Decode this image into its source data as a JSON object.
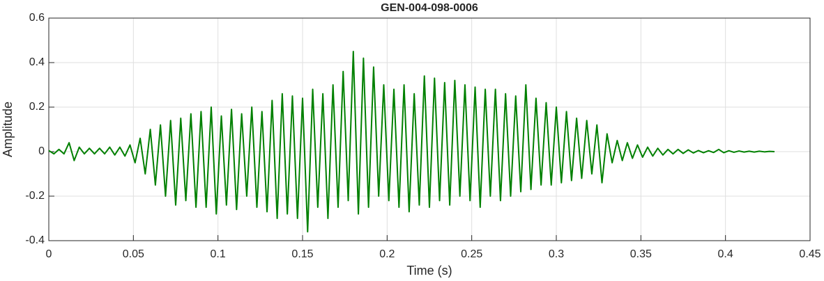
{
  "chart_data": {
    "type": "line",
    "title": "GEN-004-098-0006",
    "x_label": "Time (s)",
    "y_label": "Amplitude",
    "x": [
      0,
      0.003,
      0.006,
      0.009,
      0.012,
      0.015,
      0.018,
      0.021,
      0.024,
      0.027,
      0.03,
      0.033,
      0.036,
      0.039,
      0.042,
      0.045,
      0.048,
      0.051,
      0.054,
      0.057,
      0.06,
      0.063,
      0.066,
      0.069,
      0.072,
      0.075,
      0.078,
      0.081,
      0.084,
      0.087,
      0.09,
      0.093,
      0.096,
      0.099,
      0.102,
      0.105,
      0.108,
      0.111,
      0.114,
      0.117,
      0.12,
      0.123,
      0.126,
      0.129,
      0.132,
      0.135,
      0.138,
      0.141,
      0.144,
      0.147,
      0.15,
      0.153,
      0.156,
      0.159,
      0.162,
      0.165,
      0.168,
      0.171,
      0.174,
      0.177,
      0.18,
      0.183,
      0.186,
      0.189,
      0.192,
      0.195,
      0.198,
      0.201,
      0.204,
      0.207,
      0.21,
      0.213,
      0.216,
      0.219,
      0.222,
      0.225,
      0.228,
      0.231,
      0.234,
      0.237,
      0.24,
      0.243,
      0.246,
      0.249,
      0.252,
      0.255,
      0.258,
      0.261,
      0.264,
      0.267,
      0.27,
      0.273,
      0.276,
      0.279,
      0.282,
      0.285,
      0.288,
      0.291,
      0.294,
      0.297,
      0.3,
      0.303,
      0.306,
      0.309,
      0.312,
      0.315,
      0.318,
      0.321,
      0.324,
      0.327,
      0.33,
      0.333,
      0.336,
      0.339,
      0.342,
      0.345,
      0.348,
      0.351,
      0.354,
      0.357,
      0.36,
      0.363,
      0.366,
      0.369,
      0.372,
      0.375,
      0.378,
      0.381,
      0.384,
      0.387,
      0.39,
      0.393,
      0.396,
      0.399,
      0.402,
      0.405,
      0.408,
      0.411,
      0.414,
      0.417,
      0.42,
      0.423,
      0.426,
      0.429
    ],
    "series": [
      {
        "name": "Amplitude",
        "color": "#008000",
        "values": [
          0.005,
          -0.01,
          0.01,
          -0.01,
          0.04,
          -0.04,
          0.02,
          -0.01,
          0.015,
          -0.01,
          0.015,
          -0.01,
          0.02,
          -0.015,
          0.02,
          -0.02,
          0.03,
          -0.05,
          0.06,
          -0.1,
          0.1,
          -0.15,
          0.12,
          -0.2,
          0.14,
          -0.24,
          0.15,
          -0.22,
          0.17,
          -0.25,
          0.18,
          -0.25,
          0.2,
          -0.28,
          0.16,
          -0.24,
          0.19,
          -0.26,
          0.17,
          -0.2,
          0.2,
          -0.25,
          0.18,
          -0.27,
          0.23,
          -0.3,
          0.26,
          -0.28,
          0.25,
          -0.3,
          0.24,
          -0.36,
          0.28,
          -0.25,
          0.26,
          -0.3,
          0.3,
          -0.25,
          0.36,
          -0.22,
          0.45,
          -0.28,
          0.42,
          -0.25,
          0.38,
          -0.2,
          0.3,
          -0.22,
          0.28,
          -0.25,
          0.3,
          -0.27,
          0.26,
          -0.24,
          0.34,
          -0.25,
          0.33,
          -0.22,
          0.31,
          -0.24,
          0.32,
          -0.2,
          0.3,
          -0.22,
          0.29,
          -0.25,
          0.28,
          -0.2,
          0.28,
          -0.22,
          0.26,
          -0.2,
          0.25,
          -0.18,
          0.3,
          -0.17,
          0.24,
          -0.15,
          0.22,
          -0.15,
          0.2,
          -0.14,
          0.18,
          -0.13,
          0.15,
          -0.12,
          0.14,
          -0.1,
          0.12,
          -0.14,
          0.08,
          -0.05,
          0.05,
          -0.04,
          0.04,
          -0.03,
          0.03,
          -0.025,
          0.02,
          -0.02,
          0.015,
          -0.015,
          0.01,
          -0.01,
          0.01,
          -0.008,
          0.008,
          -0.006,
          0.005,
          -0.005,
          0.004,
          -0.004,
          0.01,
          -0.005,
          0.004,
          -0.003,
          0.003,
          -0.002,
          0.002,
          -0.002,
          0.002,
          -0.001,
          0.001,
          0
        ]
      }
    ],
    "xlim": [
      0,
      0.45
    ],
    "xticks": [
      0,
      0.05,
      0.1,
      0.15,
      0.2,
      0.25,
      0.3,
      0.35,
      0.4,
      0.45
    ],
    "ylim": [
      -0.4,
      0.6
    ],
    "yticks": [
      -0.4,
      -0.2,
      0,
      0.2,
      0.4,
      0.6
    ],
    "grid": true
  }
}
